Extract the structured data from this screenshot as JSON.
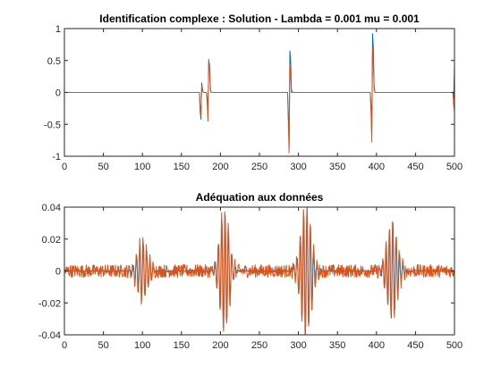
{
  "chart_data": [
    {
      "type": "line",
      "title": "Identification complexe : Solution - Lambda = 0.001 mu = 0.001",
      "xlabel": "",
      "ylabel": "",
      "xlim": [
        0,
        500
      ],
      "ylim": [
        -1,
        1
      ],
      "xticks": [
        "0",
        "50",
        "100",
        "150",
        "200",
        "250",
        "300",
        "350",
        "400",
        "450",
        "500"
      ],
      "yticks": [
        "1",
        "0.5",
        "0",
        "-0.5",
        "-1"
      ],
      "grid": false,
      "legend": "none",
      "series": [
        {
          "color": "#0072BD",
          "points": [
            [
              0,
              0
            ],
            [
              173,
              0
            ],
            [
              174,
              -0.3
            ],
            [
              175,
              -0.42
            ],
            [
              176,
              0.15
            ],
            [
              177,
              0.05
            ],
            [
              178,
              0
            ],
            [
              182,
              0
            ],
            [
              183,
              -0.1
            ],
            [
              184,
              -0.38
            ],
            [
              185,
              0.48
            ],
            [
              186,
              0.45
            ],
            [
              187,
              0.1
            ],
            [
              188,
              0
            ],
            [
              286,
              0
            ],
            [
              287,
              -0.3
            ],
            [
              288,
              -0.85
            ],
            [
              289,
              0.65
            ],
            [
              290,
              0.5
            ],
            [
              291,
              0.05
            ],
            [
              292,
              0
            ],
            [
              392,
              0
            ],
            [
              393,
              -0.2
            ],
            [
              394,
              -0.65
            ],
            [
              395,
              0.92
            ],
            [
              396,
              0.7
            ],
            [
              397,
              0.1
            ],
            [
              398,
              0
            ],
            [
              498,
              0
            ],
            [
              499,
              -0.1
            ],
            [
              500,
              0.42
            ]
          ]
        },
        {
          "color": "#D95319",
          "points": [
            [
              0,
              0
            ],
            [
              173,
              0
            ],
            [
              174,
              -0.2
            ],
            [
              175,
              -0.35
            ],
            [
              176,
              0.1
            ],
            [
              177,
              0.03
            ],
            [
              178,
              0
            ],
            [
              182,
              0
            ],
            [
              183,
              -0.15
            ],
            [
              184,
              -0.45
            ],
            [
              185,
              0.52
            ],
            [
              186,
              0.4
            ],
            [
              187,
              0.05
            ],
            [
              188,
              0
            ],
            [
              286,
              0
            ],
            [
              287,
              -0.45
            ],
            [
              288,
              -0.95
            ],
            [
              289,
              0.45
            ],
            [
              290,
              0.3
            ],
            [
              291,
              0
            ],
            [
              392,
              0
            ],
            [
              393,
              -0.3
            ],
            [
              394,
              -0.78
            ],
            [
              395,
              0.7
            ],
            [
              396,
              0.5
            ],
            [
              397,
              0.05
            ],
            [
              398,
              0
            ],
            [
              498,
              0
            ],
            [
              499,
              -0.2
            ],
            [
              500,
              -0.3
            ]
          ]
        }
      ]
    },
    {
      "type": "line",
      "title": "Adéquation aux données",
      "xlabel": "",
      "ylabel": "",
      "xlim": [
        0,
        500
      ],
      "ylim": [
        -0.04,
        0.04
      ],
      "xticks": [
        "0",
        "50",
        "100",
        "150",
        "200",
        "250",
        "300",
        "350",
        "400",
        "450",
        "500"
      ],
      "yticks": [
        "0.04",
        "0.02",
        "0",
        "-0.02",
        "-0.04"
      ],
      "grid": false,
      "legend": "none",
      "series": [
        {
          "color": "#0072BD",
          "packets": [
            {
              "center": 100,
              "amplitude": 0.018,
              "width": 12
            },
            {
              "center": 205,
              "amplitude": 0.036,
              "width": 11
            },
            {
              "center": 310,
              "amplitude": 0.04,
              "width": 12
            },
            {
              "center": 420,
              "amplitude": 0.03,
              "width": 12
            }
          ],
          "noise_amplitude": 0.0004
        },
        {
          "color": "#D95319",
          "packets": [
            {
              "center": 100,
              "amplitude": 0.02,
              "width": 12
            },
            {
              "center": 205,
              "amplitude": 0.04,
              "width": 11
            },
            {
              "center": 310,
              "amplitude": 0.042,
              "width": 12
            },
            {
              "center": 420,
              "amplitude": 0.032,
              "width": 12
            }
          ],
          "noise_amplitude": 0.004
        }
      ]
    }
  ]
}
